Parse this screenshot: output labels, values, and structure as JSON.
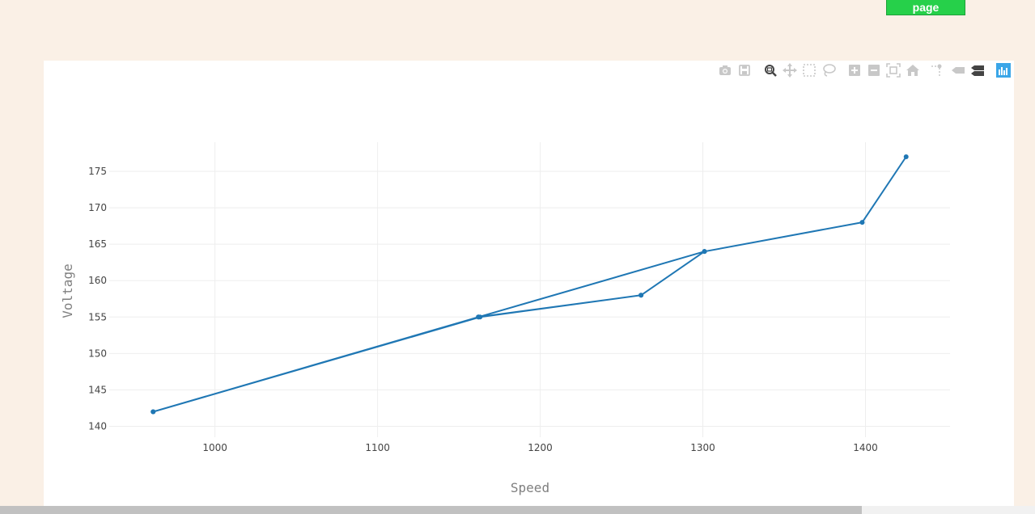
{
  "page_button": {
    "label": "page"
  },
  "modebar": {
    "icons": [
      "camera-icon",
      "save-icon",
      "zoom-icon",
      "pan-icon",
      "box-select-icon",
      "lasso-select-icon",
      "zoom-in-icon",
      "zoom-out-icon",
      "autoscale-icon",
      "reset-axes-icon",
      "toggle-spike-lines-icon",
      "hover-closest-icon",
      "hover-compare-icon",
      "plotly-logo-icon"
    ],
    "active_color": "#444444",
    "inactive_color": "#c8c8c8",
    "logo_color": "#3aa6e8"
  },
  "chart_data": {
    "type": "line",
    "title": "",
    "xlabel": "Speed",
    "ylabel": "Voltage",
    "xlim": [
      935,
      1452
    ],
    "ylim": [
      138.5,
      179
    ],
    "x_ticks": [
      1000,
      1100,
      1200,
      1300,
      1400
    ],
    "y_ticks": [
      140,
      145,
      150,
      155,
      160,
      165,
      170,
      175
    ],
    "grid": true,
    "legend": "none",
    "line_color": "#1f77b4",
    "series": [
      {
        "x": [
          962,
          1163,
          1262,
          1301,
          1162,
          962,
          1162,
          1262,
          1301,
          1398,
          1425
        ],
        "y": [
          142,
          155,
          158,
          164,
          155,
          142,
          155,
          158,
          164,
          168,
          177
        ]
      }
    ]
  }
}
